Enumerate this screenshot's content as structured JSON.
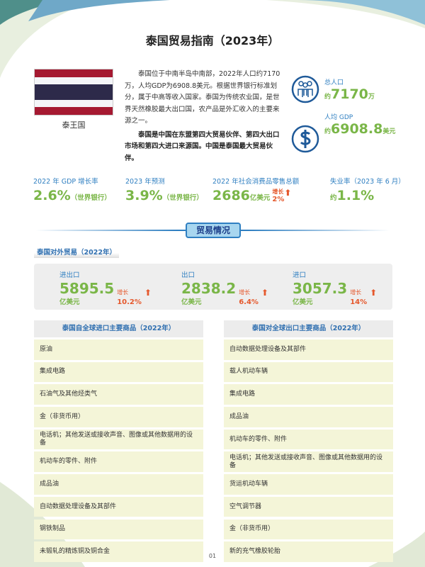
{
  "title": "泰国贸易指南（2023年）",
  "country": {
    "name": "泰王国",
    "flag_colors": [
      "#a51931",
      "#f4f5f8",
      "#2d2a4a",
      "#f4f5f8",
      "#a51931"
    ]
  },
  "intro": {
    "p1": "泰国位于中南半岛中南部，2022年人口约7170万，人均GDP为6908.8美元。根据世界银行标准划分，属于中高等收入国家。泰国为传统农业国，是世界天然橡胶最大出口国，农产品是外汇收入的主要来源之一。",
    "p2": "泰国是中国在东盟第四大贸易伙伴、第四大出口市场和第四大进口来源国。中国是泰国最大贸易伙伴。"
  },
  "kpis": [
    {
      "icon": "people-icon",
      "label": "总人口",
      "prefix": "约",
      "value": "7170",
      "unit": "万"
    },
    {
      "icon": "dollar-icon",
      "label": "人均 GDP",
      "prefix": "约",
      "value": "6908.8",
      "unit": "美元"
    }
  ],
  "stats": [
    {
      "label": "2022 年 GDP 增长率",
      "value": "2.6%",
      "note": "（世界银行）"
    },
    {
      "label": "2023 年预测",
      "value": "3.9%",
      "note": "（世界银行）"
    },
    {
      "label": "2022 年社会消费品零售总额",
      "value": "2686",
      "note": "亿美元",
      "growth_label": "增长",
      "growth": "2%"
    },
    {
      "label": "失业率（2023 年 6 月）",
      "prefix": "约",
      "value": "1.1%"
    }
  ],
  "section_title": "贸易情况",
  "subsection_title": "泰国对外贸易（2022年）",
  "trade": [
    {
      "label": "进出口",
      "value": "5895.5",
      "unit": "亿美元",
      "growth_label": "增长",
      "growth": "10.2%"
    },
    {
      "label": "出口",
      "value": "2838.2",
      "unit": "亿美元",
      "growth_label": "增长",
      "growth": "6.4%"
    },
    {
      "label": "进口",
      "value": "3057.3",
      "unit": "亿美元",
      "growth_label": "增长",
      "growth": "14%"
    }
  ],
  "imports": {
    "header": "泰国自全球进口主要商品（2022年）",
    "items": [
      "原油",
      "集成电路",
      "石油气及其他烃类气",
      "金（非货币用）",
      "电话机；其他发送或接收声音、图像或其他数据用的设备",
      "机动车的零件、附件",
      "成品油",
      "自动数据处理设备及其部件",
      "钢铁制品",
      "未锻轧的精炼铜及铜合金"
    ]
  },
  "exports": {
    "header": "泰国对全球出口主要商品（2022年）",
    "items": [
      "自动数据处理设备及其部件",
      "载人机动车辆",
      "集成电路",
      "成品油",
      "机动车的零件、附件",
      "电话机；其他发送或接收声音、图像或其他数据用的设备",
      "货运机动车辆",
      "空气调节器",
      "金（非货币用）",
      "新的充气橡胶轮胎"
    ]
  },
  "page_number": "01",
  "colors": {
    "accent_blue": "#2f7fc1",
    "accent_green": "#7ab648",
    "growth_red": "#e5582c"
  }
}
